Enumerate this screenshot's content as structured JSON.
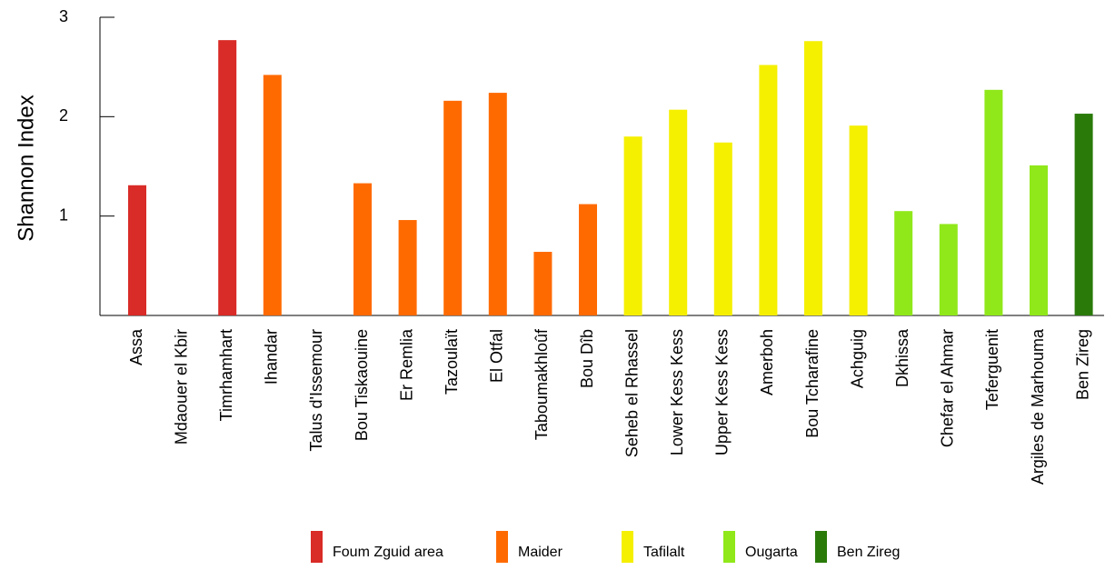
{
  "chart_data": {
    "type": "bar",
    "y_label": "Shannon Index",
    "categories": [
      "Assa",
      "Mdaouer el Kbir",
      "Timrhamhart",
      "Ihandar",
      "Talus d'Issemour",
      "Bou Tiskaouine",
      "Er Remlia",
      "Tazoulaït",
      "El Otfal",
      "Taboumakhloûf",
      "Bou Dîb",
      "Seheb el Rhassel",
      "Lower Kess Kess",
      "Upper Kess Kess",
      "Amerboh",
      "Bou Tcharafine",
      "Achguig",
      "Dkhissa",
      "Chefar el Ahmar",
      "Teferguenit",
      "Argiles de Marhouma",
      "Ben Zireg"
    ],
    "series": [
      {
        "name": "Foum Zguid area",
        "color": "#d92b27",
        "values": [
          1.31,
          null,
          2.77,
          null,
          null,
          null,
          null,
          null,
          null,
          null,
          null,
          null,
          null,
          null,
          null,
          null,
          null,
          null,
          null,
          null,
          null,
          null
        ]
      },
      {
        "name": "Maider",
        "color": "#ff6a00",
        "values": [
          null,
          null,
          null,
          2.42,
          null,
          1.33,
          0.96,
          2.16,
          2.24,
          0.64,
          1.12,
          null,
          null,
          null,
          null,
          null,
          null,
          null,
          null,
          null,
          null,
          null
        ]
      },
      {
        "name": "Tafilalt",
        "color": "#f5ef00",
        "values": [
          null,
          null,
          null,
          null,
          null,
          null,
          null,
          null,
          null,
          null,
          null,
          1.8,
          2.07,
          1.74,
          2.52,
          2.76,
          1.91,
          null,
          null,
          null,
          null,
          null
        ]
      },
      {
        "name": "Ougarta",
        "color": "#90e81a",
        "values": [
          null,
          null,
          null,
          null,
          null,
          null,
          null,
          null,
          null,
          null,
          null,
          null,
          null,
          null,
          null,
          null,
          null,
          1.05,
          0.92,
          2.27,
          1.51,
          null
        ]
      },
      {
        "name": "Ben Zireg",
        "color": "#2a7a0a",
        "values": [
          null,
          null,
          null,
          null,
          null,
          null,
          null,
          null,
          null,
          null,
          null,
          null,
          null,
          null,
          null,
          null,
          null,
          null,
          null,
          null,
          null,
          2.03
        ]
      }
    ],
    "ylim": [
      0,
      3
    ],
    "yticks": [
      1,
      2,
      3
    ],
    "legend": "bottom"
  }
}
